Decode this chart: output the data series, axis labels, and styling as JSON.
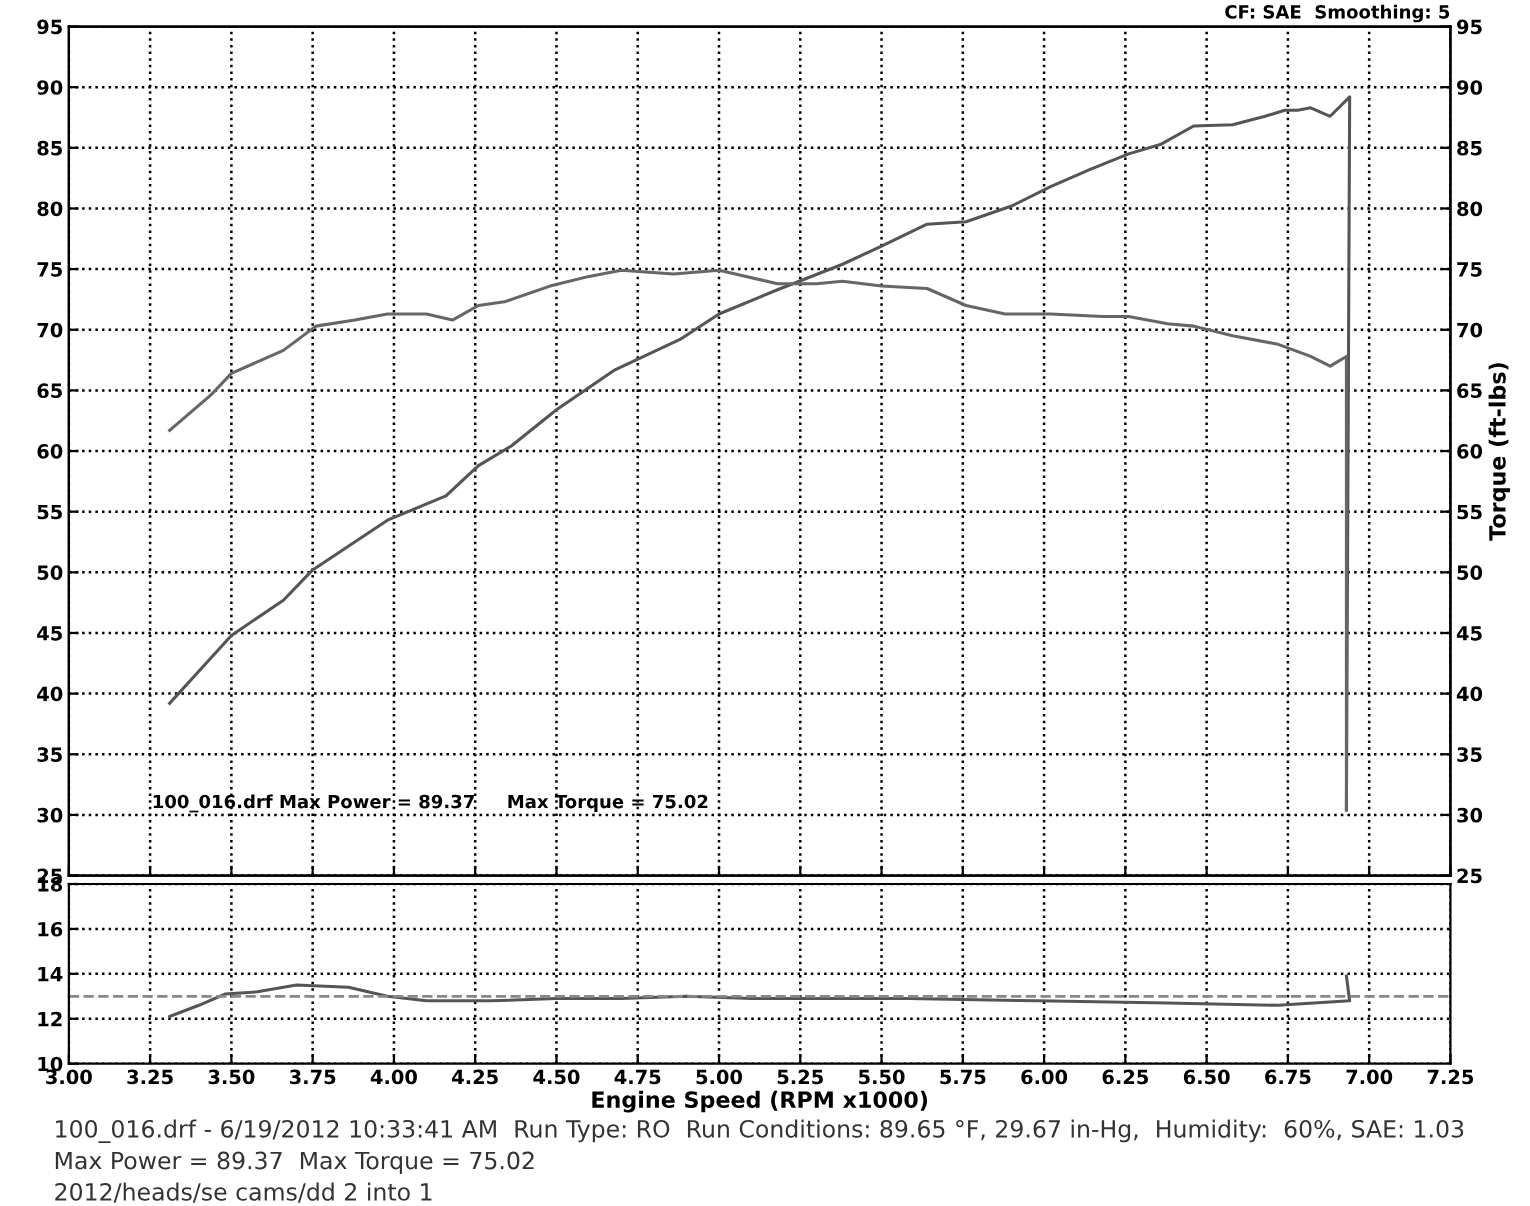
{
  "chart_data": [
    {
      "type": "line",
      "xlim": [
        3.0,
        7.25
      ],
      "ylim": [
        25,
        95
      ],
      "yticks": [
        25,
        30,
        35,
        40,
        45,
        50,
        55,
        60,
        65,
        70,
        75,
        80,
        85,
        90,
        95
      ],
      "y2lim": [
        25,
        95
      ],
      "y2ticks": [
        25,
        30,
        35,
        40,
        45,
        50,
        55,
        60,
        65,
        70,
        75,
        80,
        85,
        90,
        95
      ],
      "y2label": "Torque (ft-lbs)",
      "xticks": [
        3.0,
        3.25,
        3.5,
        3.75,
        4.0,
        4.25,
        4.5,
        4.75,
        5.0,
        5.25,
        5.5,
        5.75,
        6.0,
        6.25,
        6.5,
        6.75,
        7.0,
        7.25
      ],
      "tick_labels": "y",
      "grid": true,
      "annotations": [
        "CF: SAE  Smoothing: 5",
        "100_016.drf Max Power = 89.37     Max Torque = 75.02"
      ],
      "series": [
        {
          "color": "#555555",
          "x": [
            3.31,
            3.5,
            3.66,
            3.75,
            3.98,
            4.16,
            4.26,
            4.36,
            4.5,
            4.68,
            4.88,
            5.0,
            5.18,
            5.38,
            5.5,
            5.64,
            5.76,
            5.9,
            6.02,
            6.14,
            6.26,
            6.36,
            6.46,
            6.58,
            6.68,
            6.74,
            6.78,
            6.82,
            6.88,
            6.94,
            6.93
          ],
          "values": [
            39.2,
            44.8,
            47.7,
            50.2,
            54.3,
            56.3,
            58.8,
            60.4,
            63.4,
            66.7,
            69.2,
            71.3,
            73.3,
            75.4,
            76.9,
            78.7,
            78.9,
            80.2,
            81.8,
            83.2,
            84.5,
            85.3,
            86.8,
            86.9,
            87.6,
            88.1,
            88.1,
            88.3,
            87.6,
            89.2,
            30.4
          ]
        },
        {
          "color": "#666666",
          "x": [
            3.31,
            3.44,
            3.5,
            3.66,
            3.76,
            3.88,
            3.98,
            4.1,
            4.18,
            4.26,
            4.34,
            4.48,
            4.6,
            4.7,
            4.86,
            5.0,
            5.18,
            5.3,
            5.38,
            5.5,
            5.64,
            5.76,
            5.88,
            6.02,
            6.18,
            6.26,
            6.38,
            6.46,
            6.58,
            6.72,
            6.82,
            6.88,
            6.93,
            6.93
          ],
          "values": [
            61.7,
            64.7,
            66.4,
            68.3,
            70.3,
            70.8,
            71.3,
            71.3,
            70.8,
            72.0,
            72.3,
            73.6,
            74.4,
            74.9,
            74.6,
            74.9,
            73.8,
            73.8,
            74.0,
            73.6,
            73.4,
            72.0,
            71.3,
            71.3,
            71.1,
            71.1,
            70.5,
            70.3,
            69.5,
            68.8,
            67.8,
            67.0,
            67.8,
            30.4
          ]
        }
      ]
    },
    {
      "type": "line",
      "xlim": [
        3.0,
        7.25
      ],
      "ylim": [
        10,
        18
      ],
      "yticks": [
        10,
        12,
        14,
        16,
        18
      ],
      "xticks": [
        {
          "value": 3.0,
          "label": "3.00"
        },
        {
          "value": 3.25,
          "label": "3.25"
        },
        {
          "value": 3.5,
          "label": "3.50"
        },
        {
          "value": 3.75,
          "label": "3.75"
        },
        {
          "value": 4.0,
          "label": "4.00"
        },
        {
          "value": 4.25,
          "label": "4.25"
        },
        {
          "value": 4.5,
          "label": "4.50"
        },
        {
          "value": 4.75,
          "label": "4.75"
        },
        {
          "value": 5.0,
          "label": "5.00"
        },
        {
          "value": 5.25,
          "label": "5.25"
        },
        {
          "value": 5.5,
          "label": "5.50"
        },
        {
          "value": 5.75,
          "label": "5.75"
        },
        {
          "value": 6.0,
          "label": "6.00"
        },
        {
          "value": 6.25,
          "label": "6.25"
        },
        {
          "value": 6.5,
          "label": "6.50"
        },
        {
          "value": 6.75,
          "label": "6.75"
        },
        {
          "value": 7.0,
          "label": "7.00"
        },
        {
          "value": 7.25,
          "label": "7.25"
        }
      ],
      "xlabel": "Engine Speed (RPM x1000)",
      "grid": true,
      "ref_lines": [
        {
          "axis": "y",
          "value": 13.0,
          "color": "#888888",
          "line_style": "dashed"
        }
      ],
      "annotations": [
        "100_016.drf - 6/19/2012 10:33:41 AM  Run Type: RO  Run Conditions: 89.65 °F, 29.67 in-Hg,  Humidity:  60%, SAE: 1.03",
        "Max Power = 89.37  Max Torque = 75.02",
        "2012/heads/se cams/dd 2 into 1"
      ],
      "series": [
        {
          "color": "#555555",
          "x": [
            3.31,
            3.4,
            3.48,
            3.58,
            3.7,
            3.86,
            3.98,
            4.1,
            4.3,
            4.5,
            4.7,
            4.9,
            5.1,
            5.3,
            5.58,
            5.98,
            6.38,
            6.72,
            6.94,
            6.93
          ],
          "values": [
            12.1,
            12.6,
            13.1,
            13.2,
            13.5,
            13.4,
            13.0,
            12.8,
            12.8,
            12.9,
            12.9,
            13.0,
            12.9,
            12.9,
            12.9,
            12.8,
            12.7,
            12.6,
            12.8,
            13.9
          ]
        }
      ]
    }
  ]
}
